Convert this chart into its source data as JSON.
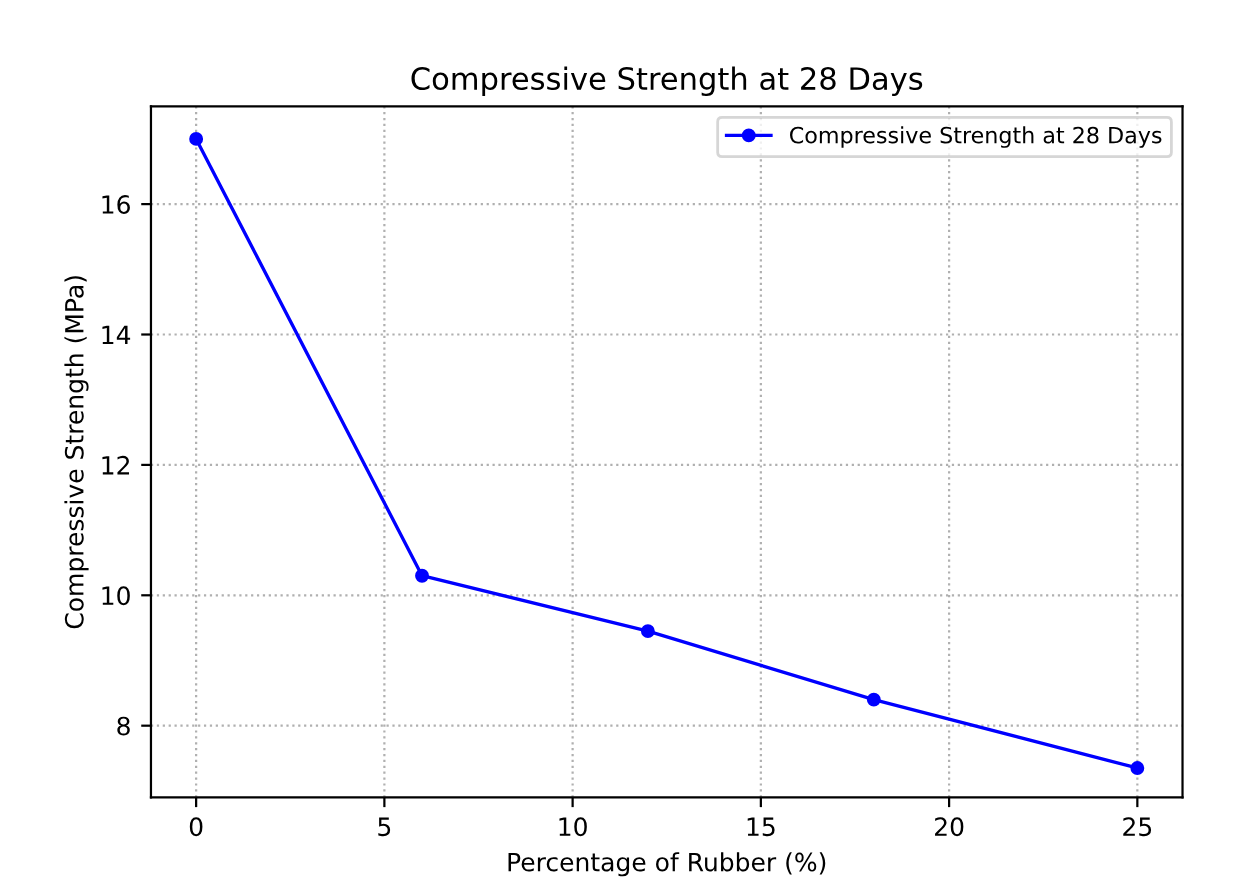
{
  "chart_data": {
    "type": "line",
    "title": "Compressive Strength at 28 Days",
    "xlabel": "Percentage of Rubber (%)",
    "ylabel": "Compressive Strength (MPa)",
    "x": [
      0,
      6,
      12,
      18,
      25
    ],
    "series": [
      {
        "name": "Compressive Strength at 28 Days",
        "color": "#0000ff",
        "values": [
          17.0,
          10.3,
          9.45,
          8.4,
          7.35
        ]
      }
    ],
    "xlim": [
      -1.2,
      26.2
    ],
    "ylim": [
      6.9,
      17.5
    ],
    "xticks": [
      0,
      5,
      10,
      15,
      20,
      25
    ],
    "yticks": [
      8,
      10,
      12,
      14,
      16
    ],
    "grid": true,
    "legend": "top right",
    "marker": "circle",
    "line_style": "solid"
  }
}
